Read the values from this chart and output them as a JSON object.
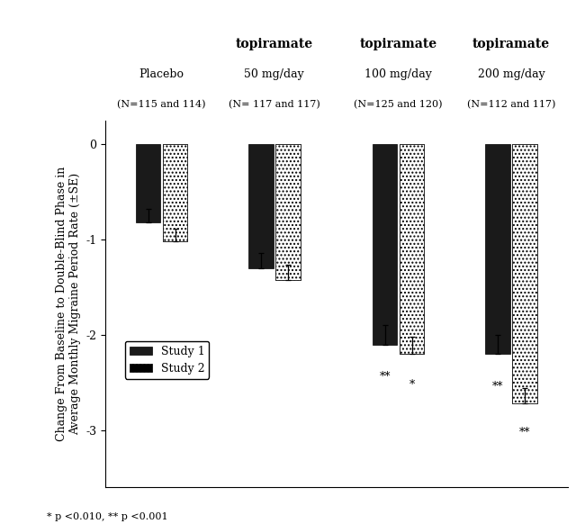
{
  "group_labels_line1": [
    "Placebo",
    "topiramate",
    "topiramate",
    "topiramate"
  ],
  "group_labels_line2": [
    "",
    "50 mg/day",
    "100 mg/day",
    "200 mg/day"
  ],
  "group_labels_line3": [
    "(N=115 and 114)",
    "(N= 117 and 117)",
    "(N=125 and 120)",
    "(N=112 and 117)"
  ],
  "study1_values": [
    -0.82,
    -1.3,
    -2.1,
    -2.2
  ],
  "study2_values": [
    -1.02,
    -1.42,
    -2.2,
    -2.72
  ],
  "study1_se": [
    0.14,
    0.16,
    0.2,
    0.2
  ],
  "study2_se": [
    0.13,
    0.16,
    0.18,
    0.16
  ],
  "bar_color_study1": "#1a1a1a",
  "bar_color_study2": "#1a1a1a",
  "bar_width": 0.22,
  "x_positions": [
    0.5,
    1.5,
    2.6,
    3.6
  ],
  "ylim": [
    -3.6,
    0.25
  ],
  "yticks": [
    0,
    -1,
    -2,
    -3
  ],
  "ylabel": "Change From Baseline to Double-Blind Phase in\nAverage Monthly Migraine Period Rate (±SE)",
  "footnote": "* p <0.010, ** p <0.001",
  "legend_labels": [
    "Study 1",
    "Study 2"
  ],
  "annotations_100": [
    "**",
    "*"
  ],
  "annotations_200": [
    "**",
    "**"
  ],
  "background_color": "#ffffff"
}
